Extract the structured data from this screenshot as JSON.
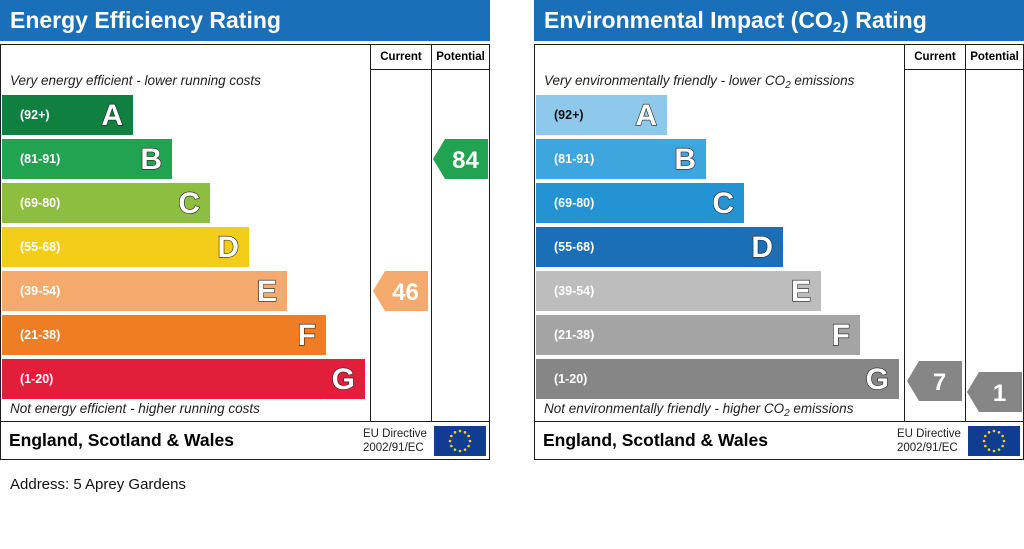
{
  "address": "Address: 5 Aprey Gardens",
  "chart_data": [
    {
      "type": "bar",
      "id": "energy-efficiency",
      "title": "Energy Efficiency Rating",
      "columns": [
        "Current",
        "Potential"
      ],
      "caption_top": "Very energy efficient - lower running costs",
      "caption_bottom": "Not energy efficient - higher running costs",
      "bands": [
        {
          "letter": "A",
          "range": "(92+)",
          "color": "#0f8040"
        },
        {
          "letter": "B",
          "range": "(81-91)",
          "color": "#22a352"
        },
        {
          "letter": "C",
          "range": "(69-80)",
          "color": "#8dbe3f"
        },
        {
          "letter": "D",
          "range": "(55-68)",
          "color": "#f4cd19"
        },
        {
          "letter": "E",
          "range": "(39-54)",
          "color": "#f4aa6c"
        },
        {
          "letter": "F",
          "range": "(21-38)",
          "color": "#ee7d24"
        },
        {
          "letter": "G",
          "range": "(1-20)",
          "color": "#e11f3a"
        }
      ],
      "current": {
        "value": 46,
        "band": "E",
        "color": "#f4aa6c"
      },
      "potential": {
        "value": 84,
        "band": "B",
        "color": "#22a352"
      },
      "footer": {
        "country": "England, Scotland & Wales",
        "directive_line1": "EU Directive",
        "directive_line2": "2002/91/EC"
      }
    },
    {
      "type": "bar",
      "id": "environmental-impact",
      "title_main": "Environmental Impact (CO",
      "title_sub": "2",
      "title_end": ") Rating",
      "columns": [
        "Current",
        "Potential"
      ],
      "caption_top_main": "Very environmentally friendly - lower CO",
      "caption_top_sub": "2",
      "caption_top_end": " emissions",
      "caption_bottom_main": "Not environmentally friendly - higher CO",
      "caption_bottom_sub": "2",
      "caption_bottom_end": " emissions",
      "bands": [
        {
          "letter": "A",
          "range": "(92+)",
          "color": "#8ec9ec"
        },
        {
          "letter": "B",
          "range": "(81-91)",
          "color": "#3da6df"
        },
        {
          "letter": "C",
          "range": "(69-80)",
          "color": "#2393d3"
        },
        {
          "letter": "D",
          "range": "(55-68)",
          "color": "#1b6fb6"
        },
        {
          "letter": "E",
          "range": "(39-54)",
          "color": "#bdbdbd"
        },
        {
          "letter": "F",
          "range": "(21-38)",
          "color": "#a4a4a4"
        },
        {
          "letter": "G",
          "range": "(1-20)",
          "color": "#868686"
        }
      ],
      "current": {
        "value": 7,
        "band": "G",
        "color": "#868686"
      },
      "potential": {
        "value": 1,
        "band": "G",
        "color": "#868686"
      },
      "footer": {
        "country": "England, Scotland & Wales",
        "directive_line1": "EU Directive",
        "directive_line2": "2002/91/EC"
      }
    }
  ]
}
